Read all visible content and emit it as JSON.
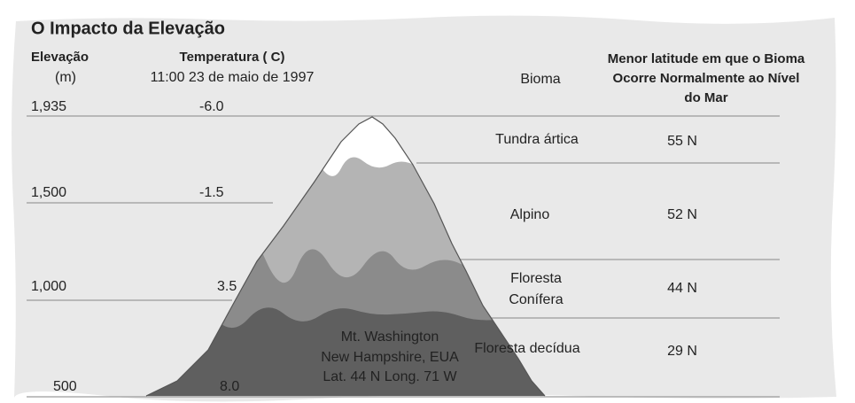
{
  "title": "O Impacto da Elevação",
  "columns": {
    "elevation": {
      "header": "Elevação",
      "unit": "(m)"
    },
    "temperature": {
      "header": "Temperatura ( C)",
      "subheader": "11:00 23 de maio de 1997"
    },
    "biome": {
      "header": "Bioma"
    },
    "latitude": {
      "header_lines": [
        "Menor latitude em que o Bioma",
        "Ocorre Normalmente ao Nível",
        "do Mar"
      ]
    }
  },
  "levels": [
    {
      "elevation": "1,935",
      "temperature": "-6.0"
    },
    {
      "elevation": "1,500",
      "temperature": "-1.5"
    },
    {
      "elevation": "1,000",
      "temperature": "3.5"
    },
    {
      "elevation": "500",
      "temperature": "8.0"
    }
  ],
  "biomes": [
    {
      "name_lines": [
        "Tundra ártica"
      ],
      "latitude": "55 N"
    },
    {
      "name_lines": [
        "Alpino"
      ],
      "latitude": "52 N"
    },
    {
      "name_lines": [
        "Floresta",
        "Conífera"
      ],
      "latitude": "44 N"
    },
    {
      "name_lines": [
        "Floresta decídua"
      ],
      "latitude": "29 N"
    }
  ],
  "mountain": {
    "label_lines": [
      "Mt. Washington",
      "New Hampshire, EUA",
      "Lat. 44 N Long. 71 W"
    ]
  }
}
